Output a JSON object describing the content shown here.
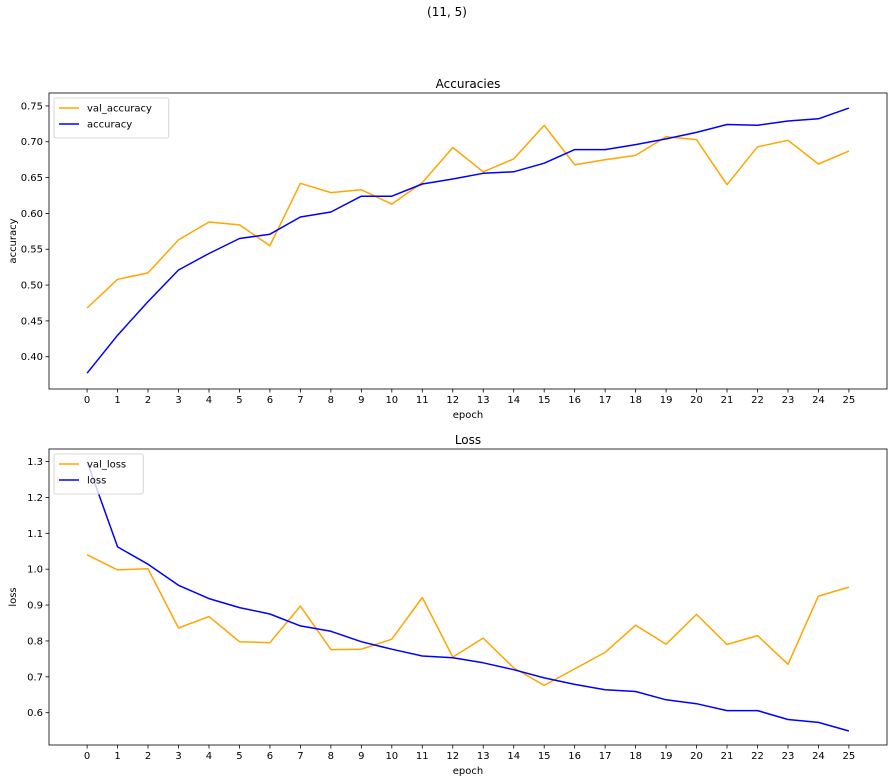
{
  "figure": {
    "suptitle": "(11, 5)"
  },
  "chart_data": [
    {
      "type": "line",
      "title": "Accuracies",
      "xlabel": "epoch",
      "ylabel": "accuracy",
      "x": [
        0,
        1,
        2,
        3,
        4,
        5,
        6,
        7,
        8,
        9,
        10,
        11,
        12,
        13,
        14,
        15,
        16,
        17,
        18,
        19,
        20,
        21,
        22,
        23,
        24,
        25
      ],
      "xlim": [
        -1.25,
        26.25
      ],
      "ylim": [
        0.355,
        0.768
      ],
      "yticks": [
        0.4,
        0.45,
        0.5,
        0.55,
        0.6,
        0.65,
        0.7,
        0.75
      ],
      "ytick_labels": [
        "0.40",
        "0.45",
        "0.50",
        "0.55",
        "0.60",
        "0.65",
        "0.70",
        "0.75"
      ],
      "legend_loc": "upper left",
      "grid": false,
      "series": [
        {
          "name": "val_accuracy",
          "color": "#ffa500",
          "values": [
            0.468,
            0.508,
            0.517,
            0.563,
            0.588,
            0.584,
            0.555,
            0.642,
            0.629,
            0.633,
            0.613,
            0.643,
            0.692,
            0.658,
            0.676,
            0.723,
            0.668,
            0.675,
            0.681,
            0.707,
            0.703,
            0.64,
            0.693,
            0.702,
            0.669,
            0.687
          ]
        },
        {
          "name": "accuracy",
          "color": "#0000ff",
          "values": [
            0.377,
            0.43,
            0.477,
            0.521,
            0.544,
            0.565,
            0.571,
            0.595,
            0.602,
            0.624,
            0.624,
            0.641,
            0.648,
            0.656,
            0.658,
            0.67,
            0.689,
            0.689,
            0.696,
            0.704,
            0.713,
            0.724,
            0.723,
            0.729,
            0.732,
            0.747
          ]
        }
      ]
    },
    {
      "type": "line",
      "title": "Loss",
      "xlabel": "epoch",
      "ylabel": "loss",
      "x": [
        0,
        1,
        2,
        3,
        4,
        5,
        6,
        7,
        8,
        9,
        10,
        11,
        12,
        13,
        14,
        15,
        16,
        17,
        18,
        19,
        20,
        21,
        22,
        23,
        24,
        25
      ],
      "xlim": [
        -1.25,
        26.25
      ],
      "ylim": [
        0.51,
        1.335
      ],
      "yticks": [
        0.6,
        0.7,
        0.8,
        0.9,
        1.0,
        1.1,
        1.2,
        1.3
      ],
      "ytick_labels": [
        "0.6",
        "0.7",
        "0.8",
        "0.9",
        "1.0",
        "1.1",
        "1.2",
        "1.3"
      ],
      "legend_loc": "upper left",
      "grid": false,
      "series": [
        {
          "name": "val_loss",
          "color": "#ffa500",
          "values": [
            1.04,
            0.998,
            1.001,
            0.836,
            0.868,
            0.798,
            0.795,
            0.897,
            0.776,
            0.777,
            0.805,
            0.921,
            0.755,
            0.808,
            0.725,
            0.676,
            0.722,
            0.768,
            0.844,
            0.791,
            0.874,
            0.79,
            0.815,
            0.735,
            0.925,
            0.95
          ]
        },
        {
          "name": "loss",
          "color": "#0000ff",
          "values": [
            1.3,
            1.062,
            1.014,
            0.955,
            0.918,
            0.893,
            0.875,
            0.842,
            0.827,
            0.798,
            0.777,
            0.758,
            0.753,
            0.739,
            0.72,
            0.697,
            0.679,
            0.664,
            0.659,
            0.636,
            0.625,
            0.606,
            0.606,
            0.581,
            0.573,
            0.549
          ]
        }
      ]
    }
  ]
}
